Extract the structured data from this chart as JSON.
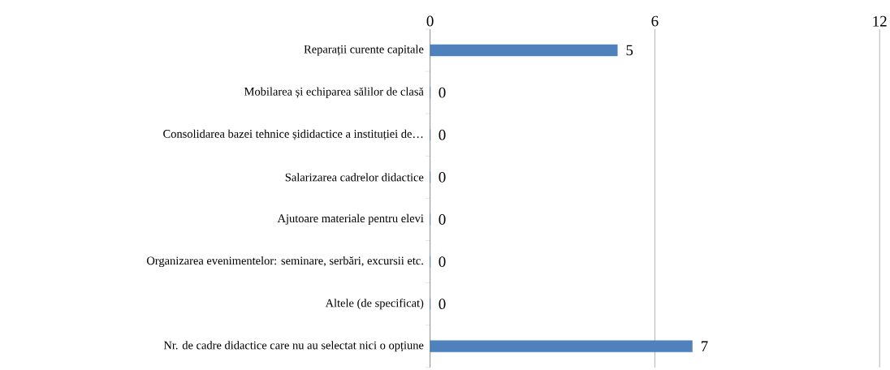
{
  "chart_data": {
    "type": "bar",
    "orientation": "horizontal",
    "categories": [
      "Reparații curente capitale",
      "Mobilarea și echiparea sălilor de clasă",
      "Consolidarea bazei tehnice șididactice a instituției de…",
      "Salarizarea cadrelor didactice",
      "Ajutoare materiale pentru elevi",
      "Organizarea evenimentelor: seminare, serbări, excursii etc.",
      "Altele (de specificat)",
      "Nr. de cadre didactice care nu au selectat nici o opțiune"
    ],
    "values": [
      5,
      0,
      0,
      0,
      0,
      0,
      0,
      7
    ],
    "color": "#4f81bd",
    "xlim": [
      0,
      12
    ],
    "xticks": [
      0,
      6,
      12
    ],
    "grid": "x",
    "data_labels": true
  }
}
